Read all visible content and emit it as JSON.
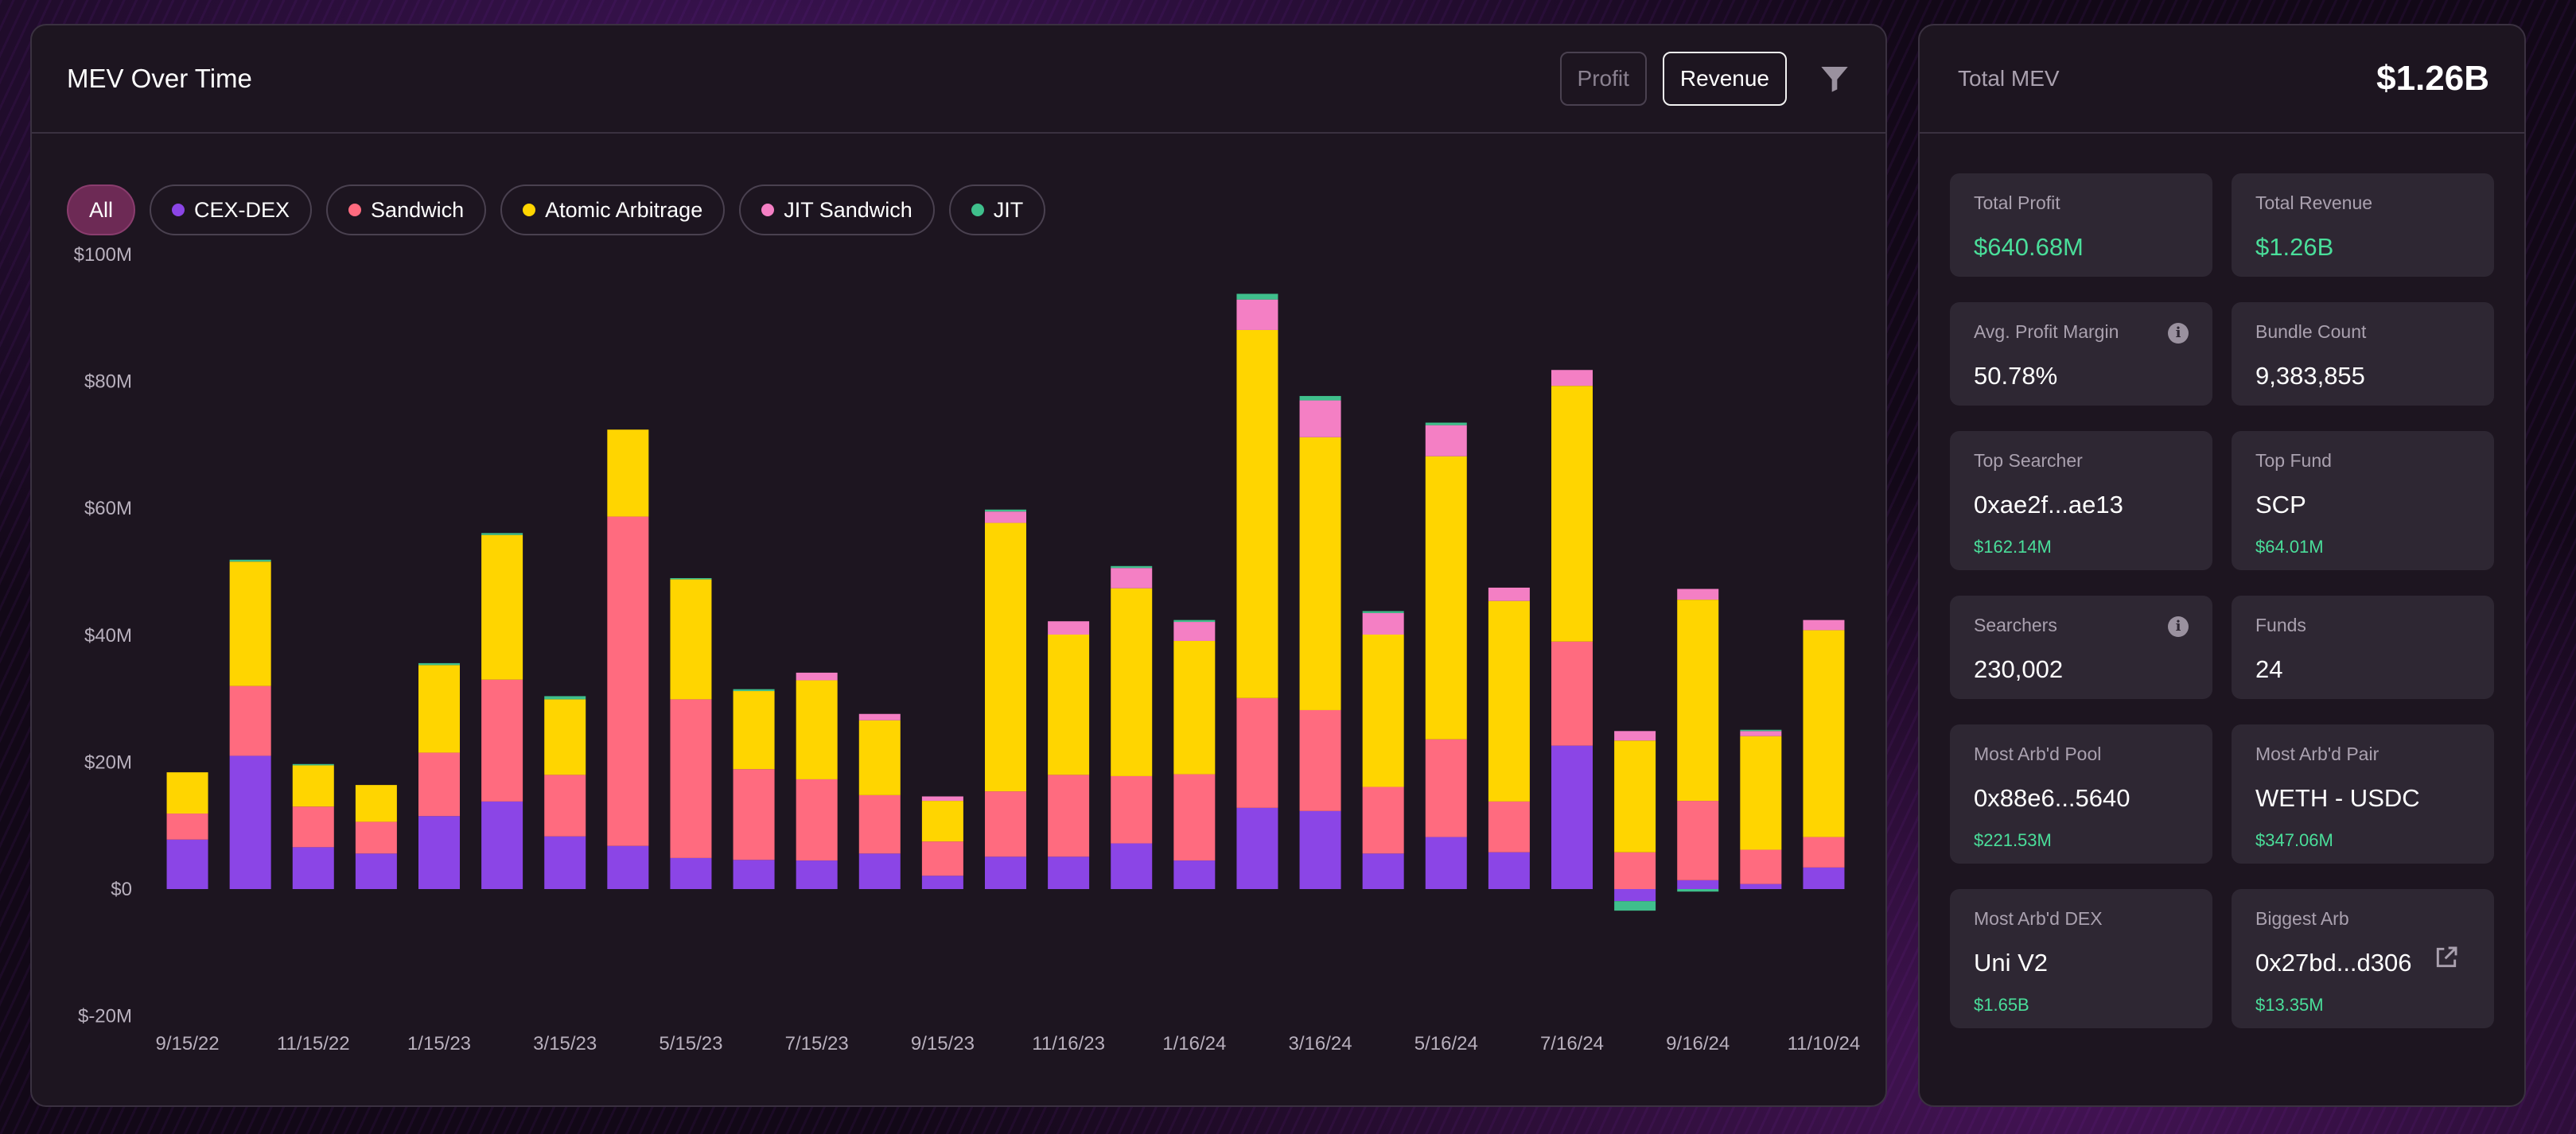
{
  "chart_card": {
    "title": "MEV Over Time",
    "toggles": [
      {
        "label": "Profit",
        "active": false
      },
      {
        "label": "Revenue",
        "active": true
      }
    ],
    "filter_icon": "filter-icon",
    "pills": [
      {
        "label": "All",
        "active": true,
        "color": null
      },
      {
        "label": "CEX-DEX",
        "active": false,
        "color": "#8b45e6"
      },
      {
        "label": "Sandwich",
        "active": false,
        "color": "#ff6b7f"
      },
      {
        "label": "Atomic Arbitrage",
        "active": false,
        "color": "#ffd500"
      },
      {
        "label": "JIT Sandwich",
        "active": false,
        "color": "#f47fc4"
      },
      {
        "label": "JIT",
        "active": false,
        "color": "#3fbf8c"
      }
    ]
  },
  "chart_data": {
    "type": "bar",
    "stacked": true,
    "ylim": [
      -20,
      100
    ],
    "y_unit": "$M",
    "y_ticks": [
      {
        "value": 100,
        "label": "$100M"
      },
      {
        "value": 80,
        "label": "$80M"
      },
      {
        "value": 60,
        "label": "$60M"
      },
      {
        "value": 40,
        "label": "$40M"
      },
      {
        "value": 20,
        "label": "$20M"
      },
      {
        "value": 0,
        "label": "$0"
      },
      {
        "value": -20,
        "label": "$-20M"
      }
    ],
    "x_tick_labels": [
      {
        "index": 0,
        "label": "9/15/22"
      },
      {
        "index": 2,
        "label": "11/15/22"
      },
      {
        "index": 4,
        "label": "1/15/23"
      },
      {
        "index": 6,
        "label": "3/15/23"
      },
      {
        "index": 8,
        "label": "5/15/23"
      },
      {
        "index": 10,
        "label": "7/15/23"
      },
      {
        "index": 12,
        "label": "9/15/23"
      },
      {
        "index": 14,
        "label": "11/16/23"
      },
      {
        "index": 16,
        "label": "1/16/24"
      },
      {
        "index": 18,
        "label": "3/16/24"
      },
      {
        "index": 20,
        "label": "5/16/24"
      },
      {
        "index": 22,
        "label": "7/16/24"
      },
      {
        "index": 24,
        "label": "9/16/24"
      },
      {
        "index": 26,
        "label": "11/10/24"
      }
    ],
    "bar_count": 27,
    "legend": "top-left",
    "grid": false,
    "series": [
      {
        "name": "CEX-DEX",
        "color": "#8b45e6",
        "values": [
          7.8,
          21,
          6.6,
          5.6,
          11.5,
          13.8,
          8.3,
          6.8,
          4.9,
          4.6,
          4.5,
          5.6,
          2.1,
          5.1,
          5.1,
          7.2,
          4.5,
          12.8,
          12.3,
          5.6,
          8.2,
          5.8,
          22.6,
          -1.9,
          1.4,
          0.8,
          3.4
        ]
      },
      {
        "name": "Sandwich",
        "color": "#ff6b7f",
        "values": [
          4.1,
          11,
          6.4,
          5.0,
          10.0,
          19.2,
          9.7,
          51.9,
          25.0,
          14.3,
          12.8,
          9.2,
          5.4,
          10.3,
          12.9,
          10.6,
          13.6,
          17.3,
          15.9,
          10.5,
          15.4,
          8.0,
          16.4,
          5.8,
          12.5,
          5.4,
          4.8
        ]
      },
      {
        "name": "Atomic Arbitrage",
        "color": "#ffd500",
        "values": [
          6.5,
          19.6,
          6.5,
          5.8,
          13.8,
          22.8,
          11.9,
          13.7,
          18.9,
          12.3,
          15.6,
          11.8,
          6.4,
          42.3,
          22.1,
          29.6,
          21.0,
          58.0,
          43.0,
          24.0,
          44.6,
          31.6,
          40.3,
          17.6,
          31.7,
          17.9,
          32.6
        ]
      },
      {
        "name": "JIT Sandwich",
        "color": "#f47fc4",
        "values": [
          0,
          0,
          0,
          0,
          0,
          0,
          0,
          0,
          0,
          0,
          1.2,
          1.0,
          0.7,
          1.8,
          2.1,
          3.2,
          3.0,
          4.8,
          5.8,
          3.4,
          4.9,
          2.1,
          2.5,
          1.5,
          1.7,
          0.8,
          1.6
        ]
      },
      {
        "name": "JIT",
        "color": "#3fbf8c",
        "values": [
          0,
          0.3,
          0.2,
          0,
          0.3,
          0.3,
          0.5,
          0,
          0.2,
          0.3,
          0,
          0,
          0,
          0.3,
          0,
          0.3,
          0.3,
          0.9,
          0.7,
          0.3,
          0.4,
          0,
          0,
          -1.5,
          -0.4,
          0.2,
          0
        ]
      }
    ]
  },
  "stats_card": {
    "label": "Total MEV",
    "total": "$1.26B",
    "tiles": [
      {
        "label": "Total Profit",
        "value": "$640.68M",
        "value_green": true,
        "sub": "",
        "info": false,
        "external": false
      },
      {
        "label": "Total Revenue",
        "value": "$1.26B",
        "value_green": true,
        "sub": "",
        "info": false,
        "external": false
      },
      {
        "label": "Avg. Profit Margin",
        "value": "50.78%",
        "value_green": false,
        "sub": "",
        "info": true,
        "external": false
      },
      {
        "label": "Bundle Count",
        "value": "9,383,855",
        "value_green": false,
        "sub": "",
        "info": false,
        "external": false
      },
      {
        "label": "Top Searcher",
        "value": "0xae2f...ae13",
        "value_green": false,
        "sub": "$162.14M",
        "info": false,
        "external": false
      },
      {
        "label": "Top Fund",
        "value": "SCP",
        "value_green": false,
        "sub": "$64.01M",
        "info": false,
        "external": false
      },
      {
        "label": "Searchers",
        "value": "230,002",
        "value_green": false,
        "sub": "",
        "info": true,
        "external": false
      },
      {
        "label": "Funds",
        "value": "24",
        "value_green": false,
        "sub": "",
        "info": false,
        "external": false
      },
      {
        "label": "Most Arb'd Pool",
        "value": "0x88e6...5640",
        "value_green": false,
        "sub": "$221.53M",
        "info": false,
        "external": false
      },
      {
        "label": "Most Arb'd Pair",
        "value": "WETH - USDC",
        "value_green": false,
        "sub": "$347.06M",
        "info": false,
        "external": false
      },
      {
        "label": "Most Arb'd DEX",
        "value": "Uni V2",
        "value_green": false,
        "sub": "$1.65B",
        "info": false,
        "external": false
      },
      {
        "label": "Biggest Arb",
        "value": "0x27bd...d306",
        "value_green": false,
        "sub": "$13.35M",
        "info": false,
        "external": true
      }
    ]
  }
}
